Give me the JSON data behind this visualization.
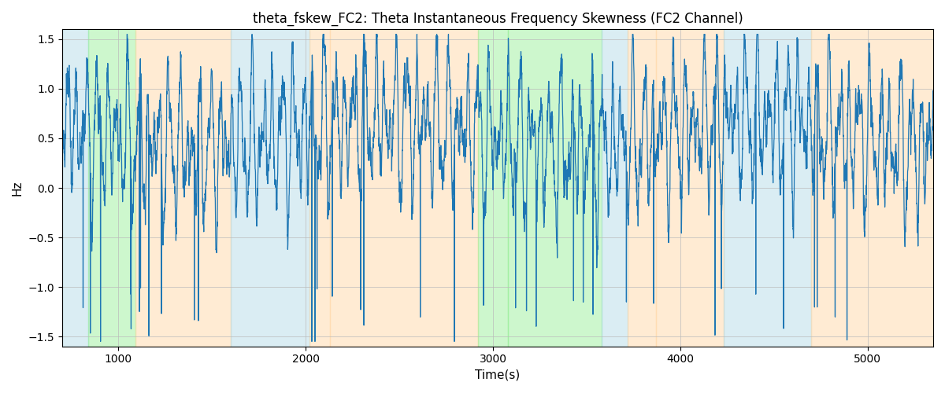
{
  "title": "theta_fskew_FC2: Theta Instantaneous Frequency Skewness (FC2 Channel)",
  "xlabel": "Time(s)",
  "ylabel": "Hz",
  "ylim": [
    -1.6,
    1.6
  ],
  "xlim": [
    700,
    5350
  ],
  "yticks": [
    -1.5,
    -1.0,
    -0.5,
    0.0,
    0.5,
    1.0,
    1.5
  ],
  "line_color": "#1f77b4",
  "line_width": 0.9,
  "bg_color": "#ffffff",
  "grid_color": "#bbbbbb",
  "title_fontsize": 12,
  "axis_fontsize": 11,
  "tick_fontsize": 10,
  "bands": [
    {
      "xmin": 700,
      "xmax": 840,
      "color": "#add8e6",
      "alpha": 0.45
    },
    {
      "xmin": 840,
      "xmax": 1090,
      "color": "#90ee90",
      "alpha": 0.45
    },
    {
      "xmin": 1090,
      "xmax": 1600,
      "color": "#ffd8a8",
      "alpha": 0.5
    },
    {
      "xmin": 1600,
      "xmax": 2020,
      "color": "#add8e6",
      "alpha": 0.45
    },
    {
      "xmin": 2020,
      "xmax": 2130,
      "color": "#ffd8a8",
      "alpha": 0.5
    },
    {
      "xmin": 2130,
      "xmax": 2920,
      "color": "#ffd8a8",
      "alpha": 0.5
    },
    {
      "xmin": 2920,
      "xmax": 3080,
      "color": "#90ee90",
      "alpha": 0.45
    },
    {
      "xmin": 3080,
      "xmax": 3580,
      "color": "#90ee90",
      "alpha": 0.45
    },
    {
      "xmin": 3580,
      "xmax": 3720,
      "color": "#add8e6",
      "alpha": 0.45
    },
    {
      "xmin": 3720,
      "xmax": 3870,
      "color": "#ffd8a8",
      "alpha": 0.5
    },
    {
      "xmin": 3870,
      "xmax": 4230,
      "color": "#ffd8a8",
      "alpha": 0.5
    },
    {
      "xmin": 4230,
      "xmax": 4700,
      "color": "#add8e6",
      "alpha": 0.45
    },
    {
      "xmin": 4700,
      "xmax": 5350,
      "color": "#ffd8a8",
      "alpha": 0.5
    }
  ],
  "seed": 7,
  "n_points": 4700,
  "time_start": 700,
  "time_end": 5350
}
